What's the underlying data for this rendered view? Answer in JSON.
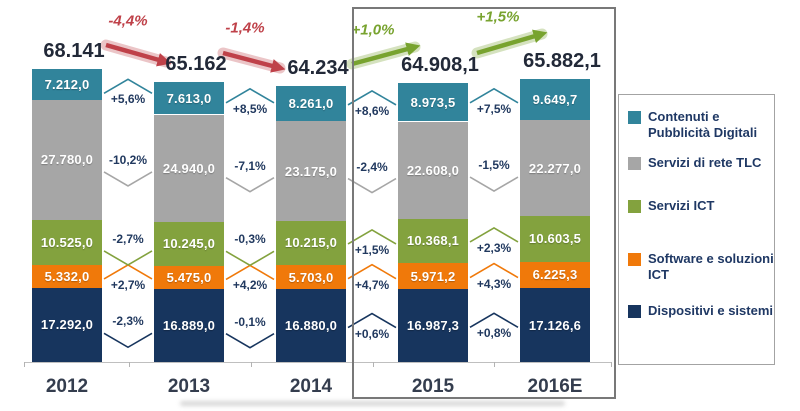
{
  "chart_data": {
    "type": "bar",
    "subtype": "stacked-column-with-variations",
    "categories": [
      "2012",
      "2013",
      "2014",
      "2015",
      "2016E"
    ],
    "totals_display": [
      "68.141",
      "65.162",
      "64.234",
      "64.908,1",
      "65.882,1"
    ],
    "totals_values": [
      68141,
      65162,
      64234,
      64908.1,
      65882.1
    ],
    "series": [
      {
        "name": "Dispositivi e sistemi",
        "color": "#17355e",
        "values": [
          17292,
          16889,
          16880,
          16987.3,
          17126.6
        ],
        "labels": [
          "17.292,0",
          "16.889,0",
          "16.880,0",
          "16.987,3",
          "17.126,6"
        ]
      },
      {
        "name": "Software e soluzioni ICT",
        "color": "#f0790a",
        "values": [
          5332,
          5475,
          5703,
          5971.2,
          6225.3
        ],
        "labels": [
          "5.332,0",
          "5.475,0",
          "5.703,0",
          "5.971,2",
          "6.225,3"
        ]
      },
      {
        "name": "Servizi ICT",
        "color": "#83a23e",
        "values": [
          10525,
          10245,
          10215,
          10368.1,
          10603.5
        ],
        "labels": [
          "10.525,0",
          "10.245,0",
          "10.215,0",
          "10.368,1",
          "10.603,5"
        ]
      },
      {
        "name": "Servizi di rete TLC",
        "color": "#a6a6a6",
        "values": [
          27780,
          24940,
          23175,
          22608,
          22277
        ],
        "labels": [
          "27.780,0",
          "24.940,0",
          "23.175,0",
          "22.608,0",
          "22.277,0"
        ]
      },
      {
        "name": "Contenuti e Pubblicità Digitali",
        "color": "#31849b",
        "values": [
          7212,
          7613,
          8261,
          8973.5,
          9649.7
        ],
        "labels": [
          "7.212,0",
          "7.613,0",
          "8.261,0",
          "8.973,5",
          "9.649,7"
        ]
      }
    ],
    "gap_changes": [
      [
        "-2,3%",
        "+2,7%",
        "-2,7%",
        "-10,2%",
        "+5,6%"
      ],
      [
        "-0,1%",
        "+4,2%",
        "-0,3%",
        "-7,1%",
        "+8,5%"
      ],
      [
        "+0,6%",
        "+4,7%",
        "+1,5%",
        "-2,4%",
        "+8,6%"
      ],
      [
        "+0,8%",
        "+4,3%",
        "+2,3%",
        "-1,5%",
        "+7,5%"
      ]
    ],
    "total_changes": [
      {
        "label": "-4,4%",
        "trend": "down"
      },
      {
        "label": "-1,4%",
        "trend": "down"
      },
      {
        "label": "+1,0%",
        "trend": "up"
      },
      {
        "label": "+1,5%",
        "trend": "up"
      }
    ],
    "trend_colors": {
      "negative": "#bf4149",
      "positive": "#78a32f"
    },
    "legend": {
      "position": "right",
      "items": [
        {
          "label": "Contenuti e Pubblicità Digitali",
          "color": "#31849b"
        },
        {
          "label": "Servizi di rete TLC",
          "color": "#a6a6a6"
        },
        {
          "label": "Servizi ICT",
          "color": "#83a23e"
        },
        {
          "label": "Software e soluzioni ICT",
          "color": "#f0790a"
        },
        {
          "label": "Dispositivi e sistemi",
          "color": "#17355e"
        }
      ]
    },
    "highlight_box_years": [
      "2015",
      "2016E"
    ],
    "axis": {
      "grid": false,
      "x_labels": [
        "2012",
        "2013",
        "2014",
        "2015",
        "2016E"
      ]
    }
  }
}
